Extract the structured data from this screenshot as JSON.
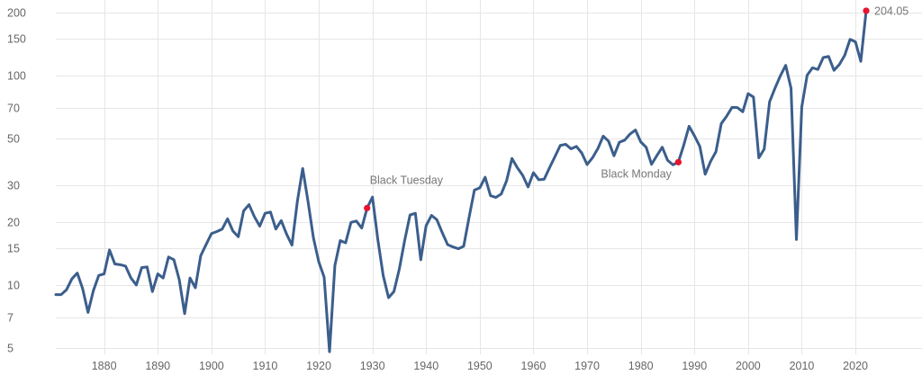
{
  "chart_data": {
    "type": "line",
    "title": "",
    "xlabel": "",
    "ylabel": "",
    "y_scale": "log",
    "xlim": [
      1871,
      2022
    ],
    "ylim": [
      5,
      200
    ],
    "grid": {
      "x": true,
      "y": true
    },
    "colors": {
      "line": "#3b5e8c",
      "marker": "#e8132e",
      "grid": "#e6e6e6",
      "tick_label": "#666666",
      "annotation": "#777777"
    },
    "x_ticks": [
      1880,
      1890,
      1900,
      1910,
      1920,
      1930,
      1940,
      1950,
      1960,
      1970,
      1980,
      1990,
      2000,
      2010,
      2020
    ],
    "y_ticks": [
      5,
      7,
      10,
      15,
      20,
      30,
      50,
      70,
      100,
      150,
      200
    ],
    "x_tick_labels": [
      "1880",
      "1890",
      "1900",
      "1910",
      "1920",
      "1930",
      "1940",
      "1950",
      "1960",
      "1970",
      "1980",
      "1990",
      "2000",
      "2010",
      "2020"
    ],
    "y_tick_labels": [
      "5",
      "7",
      "10",
      "15",
      "20",
      "30",
      "50",
      "70",
      "100",
      "150",
      "200"
    ],
    "series": [
      {
        "x": [
          1871,
          1872,
          1873,
          1874,
          1875,
          1876,
          1877,
          1878,
          1879,
          1880,
          1881,
          1882,
          1883,
          1884,
          1885,
          1886,
          1887,
          1888,
          1889,
          1890,
          1891,
          1892,
          1893,
          1894,
          1895,
          1896,
          1897,
          1898,
          1899,
          1900,
          1901,
          1902,
          1903,
          1904,
          1905,
          1906,
          1907,
          1908,
          1909,
          1910,
          1911,
          1912,
          1913,
          1914,
          1915,
          1916,
          1917,
          1918,
          1919,
          1920,
          1921,
          1922,
          1923,
          1924,
          1925,
          1926,
          1927,
          1928,
          1929,
          1930,
          1931,
          1932,
          1933,
          1934,
          1935,
          1936,
          1937,
          1938,
          1939,
          1940,
          1941,
          1942,
          1943,
          1944,
          1945,
          1946,
          1947,
          1948,
          1949,
          1950,
          1951,
          1952,
          1953,
          1954,
          1955,
          1956,
          1957,
          1958,
          1959,
          1960,
          1961,
          1962,
          1963,
          1964,
          1965,
          1966,
          1967,
          1968,
          1969,
          1970,
          1971,
          1972,
          1973,
          1974,
          1975,
          1976,
          1977,
          1978,
          1979,
          1980,
          1981,
          1982,
          1983,
          1984,
          1985,
          1986,
          1987,
          1988,
          1989,
          1990,
          1991,
          1992,
          1993,
          1994,
          1995,
          1996,
          1997,
          1998,
          1999,
          2000,
          2001,
          2002,
          2003,
          2004,
          2005,
          2006,
          2007,
          2008,
          2009,
          2010,
          2011,
          2012,
          2013,
          2014,
          2015,
          2016,
          2017,
          2018,
          2019,
          2020,
          2021,
          2022
        ],
        "values": [
          9,
          9,
          9.5,
          10.7,
          11.4,
          9.6,
          7.4,
          9.4,
          11.1,
          11.3,
          14.7,
          12.6,
          12.5,
          12.3,
          10.8,
          10,
          12.1,
          12.2,
          9.3,
          11.3,
          10.8,
          13.6,
          13.2,
          10.6,
          7.3,
          10.8,
          9.7,
          13.8,
          15.6,
          17.6,
          18,
          18.5,
          20.7,
          18.1,
          17,
          22.6,
          24.2,
          21.2,
          19.1,
          22,
          22.3,
          18.5,
          20.3,
          17.5,
          15.5,
          25,
          36,
          25,
          16.8,
          12.9,
          10.9,
          4.8,
          12.4,
          16.3,
          15.9,
          19.9,
          20.2,
          18.7,
          23.3,
          26.3,
          16.5,
          11.1,
          8.7,
          9.3,
          11.9,
          16.3,
          21.6,
          22,
          13.2,
          19.2,
          21.5,
          20.5,
          17.8,
          15.6,
          15.2,
          14.9,
          15.3,
          21,
          28.4,
          29.1,
          32.7,
          26.7,
          26.2,
          27.2,
          31.5,
          40.2,
          36.3,
          33.4,
          29.4,
          34.4,
          31.8,
          32,
          36.3,
          41,
          46.4,
          47,
          44.7,
          45.9,
          42.7,
          37.6,
          40.5,
          44.8,
          51.4,
          48.6,
          41.4,
          48,
          49.2,
          52.6,
          55,
          48.2,
          45.5,
          37.7,
          41.5,
          45.5,
          39.4,
          37.5,
          38.6,
          46.5,
          57.3,
          51.6,
          45.9,
          33.8,
          38.9,
          43.3,
          59,
          64,
          70.5,
          70.4,
          67.2,
          82,
          79,
          40.5,
          44.6,
          75,
          87,
          99.7,
          112,
          87,
          16.5,
          71,
          100.5,
          109,
          107,
          122,
          123.5,
          106,
          113,
          125,
          149,
          145,
          117,
          204.05
        ]
      }
    ],
    "annotations": [
      {
        "label": "Black Tuesday",
        "x": 1929,
        "y": 23.3
      },
      {
        "label": "Black Monday",
        "x": 1987,
        "y": 38.6
      },
      {
        "label": "204.05",
        "x": 2022,
        "y": 204.05
      }
    ]
  }
}
